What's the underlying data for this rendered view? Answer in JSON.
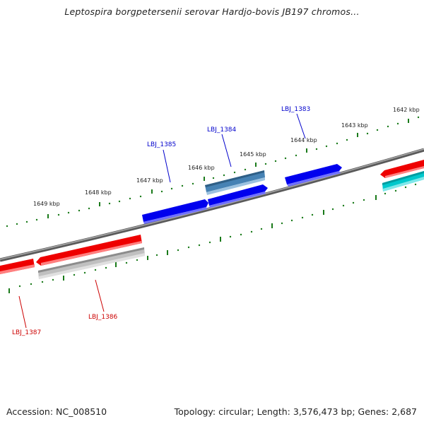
{
  "title": "Leptospira borgpetersenii serovar Hardjo-bovis JB197 chromos...",
  "footer": {
    "accession": "Accession: NC_008510",
    "summary": "Topology: circular; Length: 3,576,473 bp; Genes: 2,687"
  },
  "ticks": [
    "1642 kbp",
    "1643 kbp",
    "1644 kbp",
    "1645 kbp",
    "1646 kbp",
    "1647 kbp",
    "1648 kbp",
    "1649 kbp"
  ],
  "genes": [
    {
      "label": "LBJ_1383",
      "color": "#0000cc"
    },
    {
      "label": "LBJ_1384",
      "color": "#0000cc"
    },
    {
      "label": "LBJ_1385",
      "color": "#0000cc"
    },
    {
      "label": "LBJ_1386",
      "color": "#cc0000"
    },
    {
      "label": "LBJ_1387",
      "color": "#cc0000"
    }
  ],
  "colors": {
    "forward": "#0000ee",
    "forward_alt": "#4682b4",
    "reverse": "#ee0000",
    "reverse_alt": "#b0b0b0",
    "cyan": "#00c0c8",
    "backbone": "#808080",
    "ticks": "#006400"
  }
}
